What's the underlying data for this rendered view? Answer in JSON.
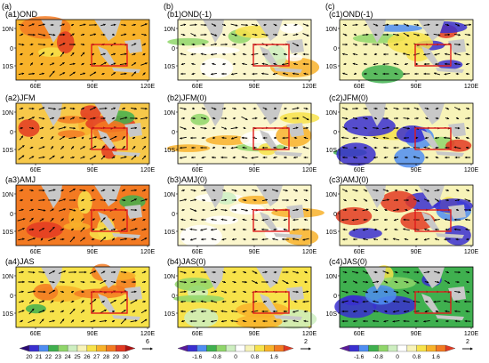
{
  "figure": {
    "columns": [
      {
        "id": "a",
        "header": "(a)",
        "panels": [
          "(a1)OND",
          "(a2)JFM",
          "(a3)AMJ",
          "(a4)JAS"
        ]
      },
      {
        "id": "b",
        "header": "(b)",
        "panels": [
          "(b1)OND(-1)",
          "(b2)JFM(0)",
          "(b3)AMJ(0)",
          "(b4)JAS(0)"
        ]
      },
      {
        "id": "c",
        "header": "(c)",
        "panels": [
          "(c1)OND(-1)",
          "(c2)JFM(0)",
          "(c3)AMJ(0)",
          "(c4)JAS(0)"
        ]
      }
    ],
    "lat_ticks": [
      "10N",
      "0",
      "10S"
    ],
    "lon_ticks": [
      "60E",
      "90E",
      "120E"
    ],
    "colorbars": [
      {
        "id": "a",
        "ticks": [
          "20",
          "21",
          "22",
          "23",
          "24",
          "25",
          "26",
          "27",
          "28",
          "29",
          "30"
        ],
        "arrow_value": "6",
        "colors": [
          "#2a0a74",
          "#3a2fd0",
          "#4f8df2",
          "#3fb04f",
          "#8fd66a",
          "#cdeec0",
          "#f7f3b8",
          "#f7e24a",
          "#f8b22a",
          "#f37a22",
          "#e33a22",
          "#b01212"
        ]
      },
      {
        "id": "b",
        "ticks": [
          "-1.6",
          "-0.8",
          "0",
          "0.8",
          "1.6"
        ],
        "arrow_value": "2",
        "colors": [
          "#5a1a9a",
          "#3a2fd0",
          "#4f8df2",
          "#3fb04f",
          "#8fd66a",
          "#cdeec0",
          "#ffffff",
          "#f7f3b8",
          "#f7e24a",
          "#f8b22a",
          "#f37a22",
          "#e33a22"
        ]
      },
      {
        "id": "c",
        "ticks": [
          "-1.6",
          "-0.8",
          "0",
          "0.8",
          "1.6"
        ],
        "arrow_value": "2",
        "colors": [
          "#5a1a9a",
          "#3a2fd0",
          "#4f8df2",
          "#3fb04f",
          "#8fd66a",
          "#cdeec0",
          "#ffffff",
          "#f7f3b8",
          "#f7e24a",
          "#f8b22a",
          "#f37a22",
          "#e33a22"
        ]
      }
    ],
    "box_color": "#e01b1b",
    "land_color": "#c8c8c8"
  }
}
